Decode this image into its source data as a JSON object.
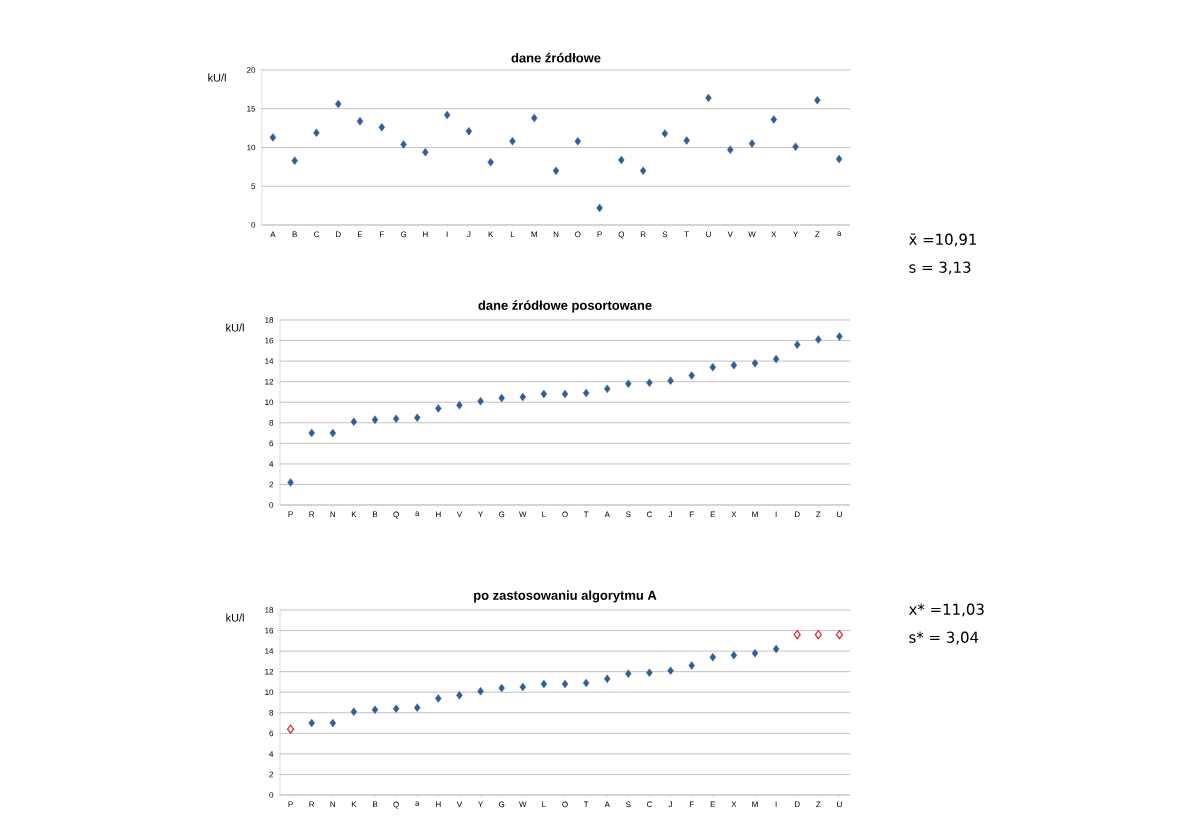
{
  "chart_data": [
    {
      "type": "scatter",
      "title": "dane źródłowe",
      "ylabel": "kU/l",
      "categories": [
        "A",
        "B",
        "C",
        "D",
        "E",
        "F",
        "G",
        "H",
        "I",
        "J",
        "K",
        "L",
        "M",
        "N",
        "O",
        "P",
        "Q",
        "R",
        "S",
        "T",
        "U",
        "V",
        "W",
        "X",
        "Y",
        "Z",
        "a"
      ],
      "series": [
        {
          "color": "#2f5f98",
          "values": [
            11.3,
            8.3,
            11.9,
            15.6,
            13.4,
            12.6,
            10.4,
            9.4,
            14.2,
            12.1,
            8.1,
            10.8,
            13.8,
            7.0,
            10.8,
            2.2,
            8.4,
            7.0,
            11.8,
            10.9,
            16.4,
            9.7,
            10.5,
            13.6,
            10.1,
            16.1,
            8.5
          ]
        }
      ],
      "ylim": [
        0,
        20
      ],
      "yticks": [
        0,
        5,
        10,
        15,
        20
      ],
      "grid": "y",
      "marker": "diamond",
      "annotations": [
        "x̄ =10,91",
        "s = 3,13"
      ]
    },
    {
      "type": "scatter",
      "title": "dane źródłowe posortowane",
      "ylabel": "kU/l",
      "categories": [
        "P",
        "R",
        "N",
        "K",
        "B",
        "Q",
        "a",
        "H",
        "V",
        "Y",
        "G",
        "W",
        "L",
        "O",
        "T",
        "A",
        "S",
        "C",
        "J",
        "F",
        "E",
        "X",
        "M",
        "I",
        "D",
        "Z",
        "U"
      ],
      "series": [
        {
          "color": "#2f5f98",
          "values": [
            2.2,
            7.0,
            7.0,
            8.1,
            8.3,
            8.4,
            8.5,
            9.4,
            9.7,
            10.1,
            10.4,
            10.5,
            10.8,
            10.8,
            10.9,
            11.3,
            11.8,
            11.9,
            12.1,
            12.6,
            13.4,
            13.6,
            13.8,
            14.2,
            15.6,
            16.1,
            16.4
          ]
        }
      ],
      "ylim": [
        0,
        18
      ],
      "yticks": [
        0,
        2,
        4,
        6,
        8,
        10,
        12,
        14,
        16,
        18
      ],
      "grid": "y",
      "marker": "diamond"
    },
    {
      "type": "scatter",
      "title": "po zastosowaniu algorytmu A",
      "ylabel": "kU/l",
      "categories": [
        "P",
        "R",
        "N",
        "K",
        "B",
        "Q",
        "a",
        "H",
        "V",
        "Y",
        "G",
        "W",
        "L",
        "O",
        "T",
        "A",
        "S",
        "C",
        "J",
        "F",
        "E",
        "X",
        "M",
        "I",
        "D",
        "Z",
        "U"
      ],
      "series": [
        {
          "color": "#2f5f98",
          "values": [
            null,
            7.0,
            7.0,
            8.1,
            8.3,
            8.4,
            8.5,
            9.4,
            9.7,
            10.1,
            10.4,
            10.5,
            10.8,
            10.8,
            10.9,
            11.3,
            11.8,
            11.9,
            12.1,
            12.6,
            13.4,
            13.6,
            13.8,
            14.2,
            null,
            null,
            null
          ]
        },
        {
          "color": "#d9262b",
          "values": [
            6.4,
            null,
            null,
            null,
            null,
            null,
            null,
            null,
            null,
            null,
            null,
            null,
            null,
            null,
            null,
            null,
            null,
            null,
            null,
            null,
            null,
            null,
            null,
            null,
            15.6,
            15.6,
            15.6
          ]
        }
      ],
      "ylim": [
        0,
        18
      ],
      "yticks": [
        0,
        2,
        4,
        6,
        8,
        10,
        12,
        14,
        16,
        18
      ],
      "grid": "y",
      "marker": "diamond",
      "annotations": [
        "x* =11,03",
        "s* = 3,04"
      ]
    }
  ]
}
